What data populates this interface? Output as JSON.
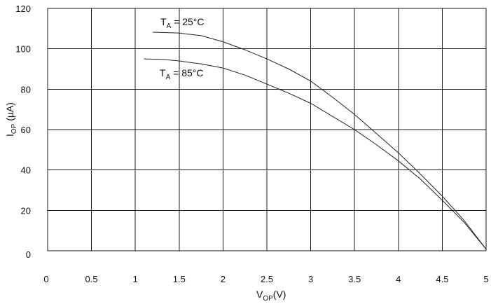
{
  "chart_data": {
    "type": "line",
    "xlabel": {
      "main": "V",
      "sub": "OP",
      "suffix": "(V)"
    },
    "ylabel": {
      "main": "I",
      "sub": "OP",
      "suffix": " (µA)"
    },
    "xlim": [
      0,
      5
    ],
    "ylim": [
      0,
      120
    ],
    "xticks": [
      "0",
      "0.5",
      "1",
      "1.5",
      "2",
      "2.5",
      "3",
      "3.5",
      "4",
      "4.5",
      "5"
    ],
    "yticks": [
      "0",
      "20",
      "40",
      "60",
      "80",
      "100",
      "120"
    ],
    "grid": true,
    "series": [
      {
        "name": {
          "main": "T",
          "sub": "A",
          "suffix": " = 25°C"
        },
        "color": "#222222",
        "points": [
          [
            1.2,
            108.2
          ],
          [
            1.5,
            107.8
          ],
          [
            1.75,
            106.5
          ],
          [
            2.0,
            103.5
          ],
          [
            2.25,
            99.5
          ],
          [
            2.5,
            95.0
          ],
          [
            2.75,
            90.0
          ],
          [
            3.0,
            84.0
          ],
          [
            3.25,
            76.0
          ],
          [
            3.5,
            67.5
          ],
          [
            3.75,
            58.0
          ],
          [
            4.0,
            48.5
          ],
          [
            4.25,
            38.0
          ],
          [
            4.5,
            27.0
          ],
          [
            4.75,
            15.0
          ],
          [
            5.0,
            0.8
          ]
        ]
      },
      {
        "name": {
          "main": "T",
          "sub": "A",
          "suffix": " = 85°C"
        },
        "color": "#222222",
        "points": [
          [
            1.1,
            95.0
          ],
          [
            1.3,
            94.8
          ],
          [
            1.5,
            94.0
          ],
          [
            1.75,
            92.5
          ],
          [
            2.0,
            90.5
          ],
          [
            2.25,
            87.0
          ],
          [
            2.5,
            82.5
          ],
          [
            2.75,
            78.0
          ],
          [
            3.0,
            73.0
          ],
          [
            3.25,
            66.5
          ],
          [
            3.5,
            60.0
          ],
          [
            3.75,
            52.5
          ],
          [
            4.0,
            44.5
          ],
          [
            4.25,
            35.5
          ],
          [
            4.5,
            25.0
          ],
          [
            4.75,
            14.0
          ],
          [
            5.0,
            0.8
          ]
        ]
      }
    ]
  }
}
